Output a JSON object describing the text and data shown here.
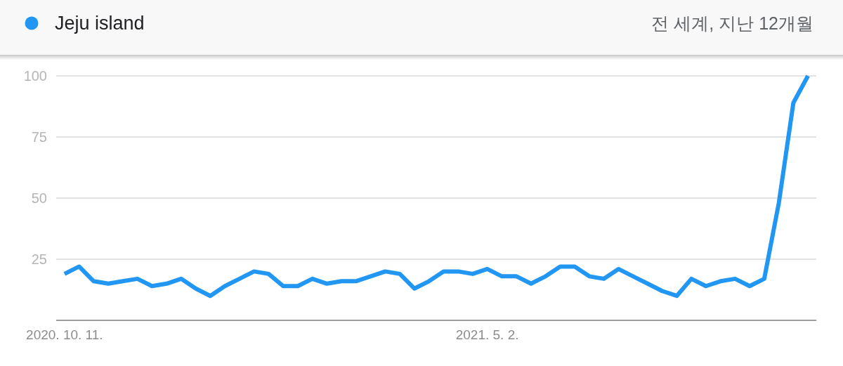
{
  "chart_data": {
    "type": "line",
    "subtitle": "전 세계, 지난 12개월",
    "x": [
      "2020-10-11",
      "2020-10-18",
      "2020-10-25",
      "2020-11-01",
      "2020-11-08",
      "2020-11-15",
      "2020-11-22",
      "2020-11-29",
      "2020-12-06",
      "2020-12-13",
      "2020-12-20",
      "2020-12-27",
      "2021-01-03",
      "2021-01-10",
      "2021-01-17",
      "2021-01-24",
      "2021-01-31",
      "2021-02-07",
      "2021-02-14",
      "2021-02-21",
      "2021-02-28",
      "2021-03-07",
      "2021-03-14",
      "2021-03-21",
      "2021-03-28",
      "2021-04-04",
      "2021-04-11",
      "2021-04-18",
      "2021-04-25",
      "2021-05-02",
      "2021-05-09",
      "2021-05-16",
      "2021-05-23",
      "2021-05-30",
      "2021-06-06",
      "2021-06-13",
      "2021-06-20",
      "2021-06-27",
      "2021-07-04",
      "2021-07-11",
      "2021-07-18",
      "2021-07-25",
      "2021-08-01",
      "2021-08-08",
      "2021-08-15",
      "2021-08-22",
      "2021-08-29",
      "2021-09-05",
      "2021-09-12",
      "2021-09-19",
      "2021-09-26",
      "2021-10-03"
    ],
    "series": [
      {
        "name": "Jeju island",
        "color": "#2196f3",
        "values": [
          19,
          22,
          16,
          15,
          16,
          17,
          14,
          15,
          17,
          13,
          10,
          14,
          17,
          20,
          19,
          14,
          14,
          17,
          15,
          16,
          16,
          18,
          20,
          19,
          13,
          16,
          20,
          20,
          19,
          21,
          18,
          18,
          15,
          18,
          22,
          22,
          18,
          17,
          21,
          18,
          15,
          12,
          10,
          17,
          14,
          16,
          17,
          14,
          17,
          48,
          89,
          100
        ]
      }
    ],
    "xlim": [
      "2020-10-07",
      "2021-10-07"
    ],
    "xticks": [
      {
        "value": "2020-10-11",
        "label": "2020. 10. 11."
      },
      {
        "value": "2021-05-02",
        "label": "2021. 5. 2."
      }
    ],
    "ylim": [
      0,
      100
    ],
    "yticks": [
      25,
      50,
      75,
      100
    ],
    "grid": "y",
    "legend": "top left",
    "marker": "none",
    "line_style": "solid"
  }
}
